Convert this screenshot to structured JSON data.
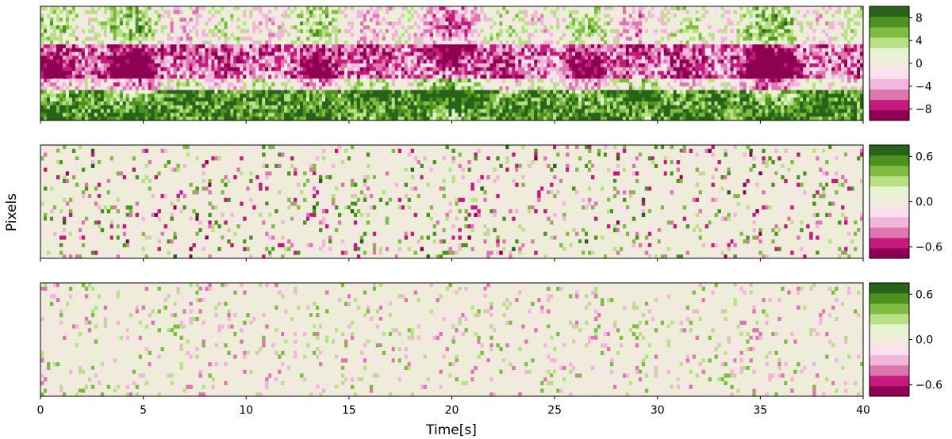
{
  "chart_data": {
    "type": "heatmap",
    "xlabel": "Time[s]",
    "ylabel": "Pixels",
    "xlim": [
      0,
      40
    ],
    "x_ticks": [
      "0",
      "5",
      "10",
      "15",
      "20",
      "25",
      "30",
      "35",
      "40"
    ],
    "x_tick_values": [
      0,
      5,
      10,
      15,
      20,
      25,
      30,
      35,
      40
    ],
    "colormap": "PiYG",
    "colormap_levels": [
      "#8e0152",
      "#c51b7d",
      "#de77ae",
      "#f1b6da",
      "#fde0ef",
      "#f0ecdc",
      "#e6f5d0",
      "#b8e186",
      "#7fbc41",
      "#4d9221",
      "#276419"
    ],
    "panels": [
      {
        "name": "top",
        "color_range": [
          -10,
          10
        ],
        "colorbar_ticks": [
          "8",
          "4",
          "0",
          "−4",
          "−8"
        ],
        "colorbar_tick_values": [
          8,
          4,
          0,
          -4,
          -8
        ],
        "pattern": "structured",
        "amplitude": 9
      },
      {
        "name": "middle",
        "color_range": [
          -0.75,
          0.75
        ],
        "colorbar_ticks": [
          "0.6",
          "0.0",
          "−0.6"
        ],
        "colorbar_tick_values": [
          0.6,
          0.0,
          -0.6
        ],
        "pattern": "noise",
        "amplitude": 0.45
      },
      {
        "name": "bottom",
        "color_range": [
          -0.75,
          0.75
        ],
        "colorbar_ticks": [
          "0.6",
          "0.0",
          "−0.6"
        ],
        "colorbar_tick_values": [
          0.6,
          0.0,
          -0.6
        ],
        "pattern": "noise",
        "amplitude": 0.3
      }
    ]
  }
}
